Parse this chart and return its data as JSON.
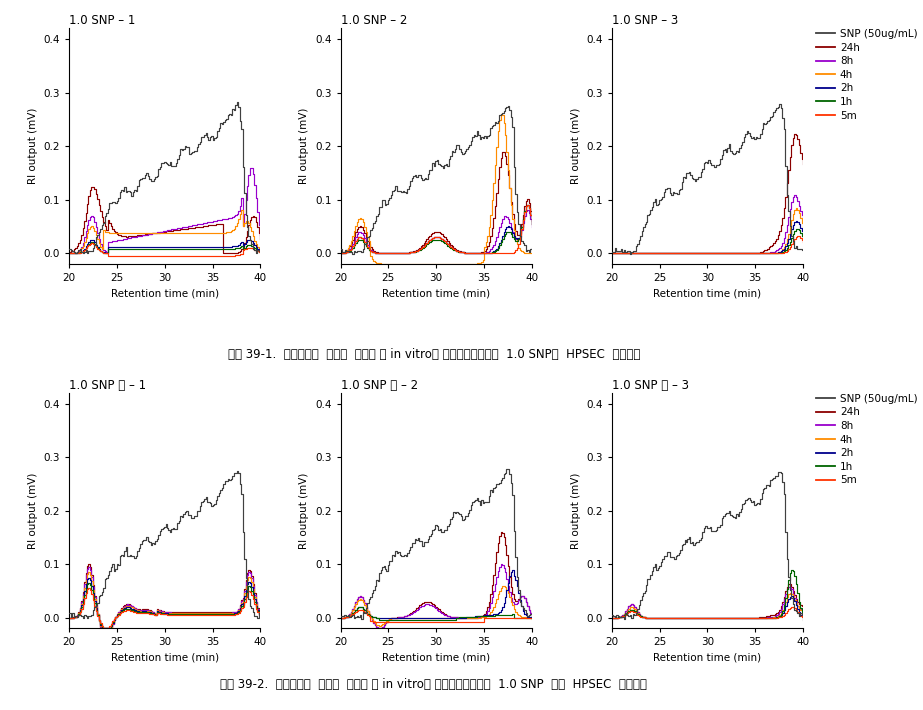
{
  "row1_titles": [
    "1.0 SNP – 1",
    "1.0 SNP – 2",
    "1.0 SNP – 3"
  ],
  "row2_titles": [
    "1.0 SNP ⓝ – 1",
    "1.0 SNP ⓝ – 2",
    "1.0 SNP ⓝ – 3"
  ],
  "xlabel": "Retention time (min)",
  "ylabel": "RI output (mV)",
  "xlim": [
    20,
    40
  ],
  "ylim": [
    -0.02,
    0.42
  ],
  "yticks": [
    0.0,
    0.1,
    0.2,
    0.3,
    0.4
  ],
  "xticks": [
    20,
    25,
    30,
    35,
    40
  ],
  "legend_labels": [
    "SNP (50ug/mL)",
    "24h",
    "8h",
    "4h",
    "2h",
    "1h",
    "5m"
  ],
  "legend_colors": [
    "#404040",
    "#8B0000",
    "#9900CC",
    "#FF8C00",
    "#00008B",
    "#006400",
    "#FF3300"
  ],
  "snp_color": "#404040",
  "caption1": "그림 39-1.  멘브레인을  이용한  생체외 （ in vitro） 피부흥수시험에서  1.0 SNP의  HPSEC  분석결과",
  "caption2": "그림 39-2.  멘브레인을  이용한  생체외 （ in vitro） 피부흥수시험에서  1.0 SNP  ⓝ의  HPSEC  분석결과"
}
